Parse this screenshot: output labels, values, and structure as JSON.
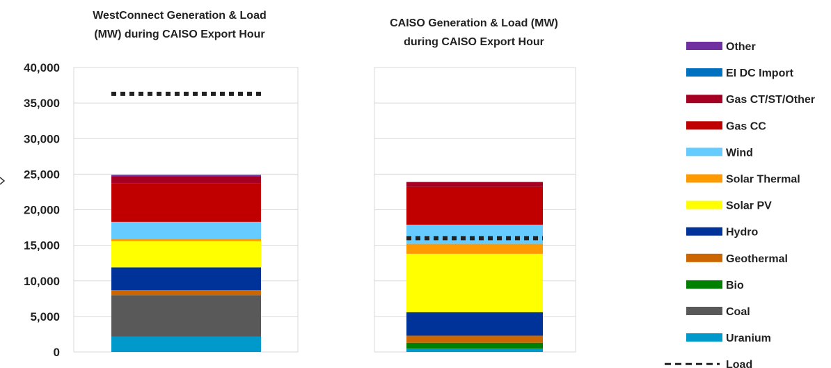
{
  "chart_data": {
    "type": "bar",
    "stacked": true,
    "yaxis": {
      "range": [
        0,
        40000
      ],
      "ticks": [
        0,
        5000,
        10000,
        15000,
        20000,
        25000,
        30000,
        35000,
        40000
      ],
      "tick_labels": [
        "0",
        "5,000",
        "10,000",
        "15,000",
        "20,000",
        "25,000",
        "30,000",
        "35,000",
        "40,000"
      ]
    },
    "grid": true,
    "legend_position": "right",
    "series_order": [
      "Uranium",
      "Coal",
      "Bio",
      "Geothermal",
      "Hydro",
      "Solar PV",
      "Solar Thermal",
      "Wind",
      "Gas CC",
      "Gas CT/ST/Other",
      "EI DC Import",
      "Other"
    ],
    "legend": [
      {
        "name": "Other",
        "color": "#7030A0"
      },
      {
        "name": "EI DC Import",
        "color": "#0070C0"
      },
      {
        "name": "Gas CT/ST/Other",
        "color": "#A50021"
      },
      {
        "name": "Gas CC",
        "color": "#C00000"
      },
      {
        "name": "Wind",
        "color": "#66CCFF"
      },
      {
        "name": "Solar Thermal",
        "color": "#FF9900"
      },
      {
        "name": "Solar PV",
        "color": "#FFFF00"
      },
      {
        "name": "Hydro",
        "color": "#003399"
      },
      {
        "name": "Geothermal",
        "color": "#CC6600"
      },
      {
        "name": "Bio",
        "color": "#008000"
      },
      {
        "name": "Coal",
        "color": "#595959"
      },
      {
        "name": "Uranium",
        "color": "#0099CC"
      },
      {
        "name": "Load",
        "color": "#222222",
        "style": "dashed-line"
      }
    ],
    "panels": [
      {
        "title_lines": [
          "WestConnect Generation & Load",
          "(MW) during CAISO Export Hour"
        ],
        "values": {
          "Uranium": 2200,
          "Coal": 5800,
          "Bio": 0,
          "Geothermal": 700,
          "Hydro": 3200,
          "Solar PV": 3700,
          "Solar Thermal": 300,
          "Wind": 2400,
          "Gas CC": 5400,
          "Gas CT/ST/Other": 1000,
          "EI DC Import": 0,
          "Other": 200
        },
        "load": 36300
      },
      {
        "title_lines": [
          "CAISO Generation & Load (MW)",
          "during CAISO Export Hour"
        ],
        "values": {
          "Uranium": 500,
          "Coal": 0,
          "Bio": 800,
          "Geothermal": 1000,
          "Hydro": 3300,
          "Solar PV": 8200,
          "Solar Thermal": 1400,
          "Wind": 2700,
          "Gas CC": 5300,
          "Gas CT/ST/Other": 700,
          "EI DC Import": 0,
          "Other": 0
        },
        "load": 16000
      }
    ]
  }
}
